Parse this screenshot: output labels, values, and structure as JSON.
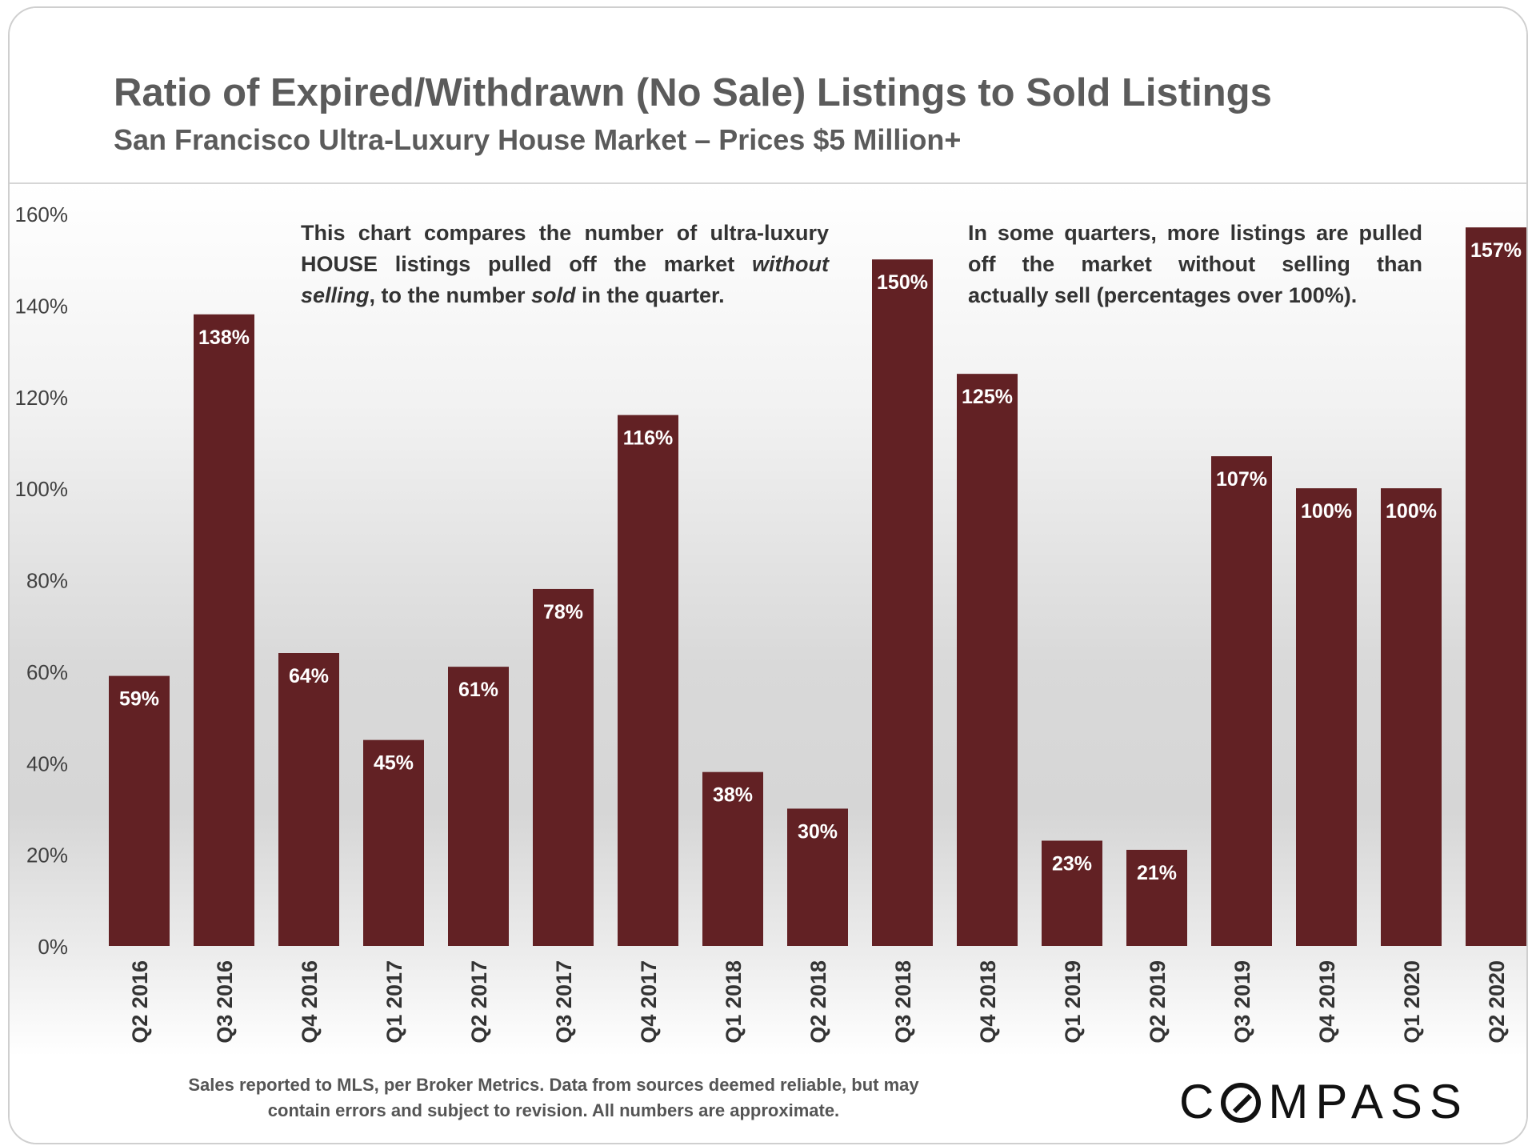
{
  "title": "Ratio of Expired/Withdrawn (No Sale) Listings to Sold Listings",
  "subtitle": "San Francisco Ultra-Luxury House Market – Prices $5 Million+",
  "annotations": {
    "left": {
      "line1": "This chart compares the number of ultra-luxury",
      "line2a": "HOUSE listings pulled off the market ",
      "line2b": "without",
      "line3a": "selling",
      "line3b": ", to the number ",
      "line3c": "sold",
      "line3d": " in the quarter."
    },
    "right": {
      "line1": "In some quarters, more listings are pulled",
      "line2": "off the market without selling than",
      "line3": "actually sell (percentages over 100%)."
    }
  },
  "footer": {
    "line1": "Sales reported to MLS, per Broker Metrics. Data from sources deemed reliable, but may",
    "line2": "contain errors and subject to revision. All numbers are approximate."
  },
  "logo": {
    "before": "C",
    "after": "MPASS"
  },
  "colors": {
    "bar": "#622124",
    "bar_label": "#ffffff",
    "axis_text": "#404040",
    "title": "#5b5b5b"
  },
  "chart_data": {
    "type": "bar",
    "title": "Ratio of Expired/Withdrawn (No Sale) Listings to Sold Listings",
    "categories": [
      "Q2 2016",
      "Q3 2016",
      "Q4 2016",
      "Q1 2017",
      "Q2 2017",
      "Q3 2017",
      "Q4 2017",
      "Q1 2018",
      "Q2 2018",
      "Q3 2018",
      "Q4 2018",
      "Q1 2019",
      "Q2 2019",
      "Q3 2019",
      "Q4 2019",
      "Q1 2020",
      "Q2 2020"
    ],
    "values": [
      59,
      138,
      64,
      45,
      61,
      78,
      116,
      38,
      30,
      150,
      125,
      23,
      21,
      107,
      100,
      100,
      157
    ],
    "value_labels": [
      "59%",
      "138%",
      "64%",
      "45%",
      "61%",
      "78%",
      "116%",
      "38%",
      "30%",
      "150%",
      "125%",
      "23%",
      "21%",
      "107%",
      "100%",
      "100%",
      "157%"
    ],
    "yticks": [
      0,
      20,
      40,
      60,
      80,
      100,
      120,
      140,
      160
    ],
    "ytick_labels": [
      "0%",
      "20%",
      "40%",
      "60%",
      "80%",
      "100%",
      "120%",
      "140%",
      "160%"
    ],
    "ylim": [
      0,
      160
    ],
    "xlabel": "",
    "ylabel": "",
    "grid": false,
    "legend": "none"
  }
}
